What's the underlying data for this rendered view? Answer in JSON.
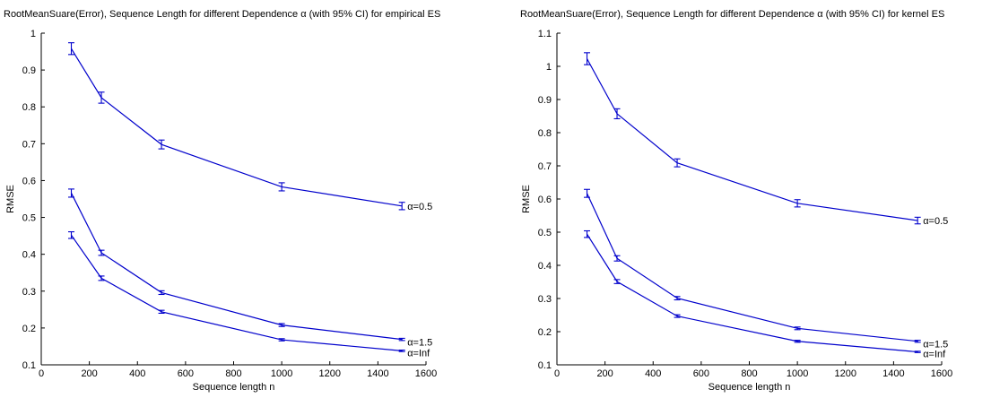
{
  "chart_data": [
    {
      "type": "line",
      "title": "RootMeanSuare(Error), Sequence Length for different Dependence α (with 95% CI) for empirical ES",
      "xlabel": "Sequence length n",
      "ylabel": "RMSE",
      "xlim": [
        0,
        1600
      ],
      "ylim": [
        0.1,
        1.0
      ],
      "xticks": [
        0,
        200,
        400,
        600,
        800,
        1000,
        1200,
        1400,
        1600
      ],
      "xtick_labels": [
        "0",
        "200",
        "400",
        "600",
        "800",
        "1000",
        "1200",
        "1400",
        "1600"
      ],
      "yticks": [
        0.1,
        0.2,
        0.3,
        0.4,
        0.5,
        0.6,
        0.7,
        0.8,
        0.9,
        1.0
      ],
      "ytick_labels": [
        "0.1",
        "0.2",
        "0.3",
        "0.4",
        "0.5",
        "0.6",
        "0.7",
        "0.8",
        "0.9",
        "1"
      ],
      "grid": false,
      "color": "#0000cc",
      "x": [
        125,
        250,
        500,
        1000,
        1500
      ],
      "series": [
        {
          "name": "α=0.5",
          "values": [
            0.958,
            0.825,
            0.698,
            0.583,
            0.531
          ],
          "ci": [
            0.016,
            0.015,
            0.012,
            0.011,
            0.01
          ]
        },
        {
          "name": "α=1.5",
          "values": [
            0.566,
            0.404,
            0.296,
            0.208,
            0.169
          ],
          "ci": [
            0.011,
            0.007,
            0.005,
            0.004,
            0.003
          ]
        },
        {
          "name": "α=Inf",
          "values": [
            0.452,
            0.335,
            0.244,
            0.168,
            0.138
          ],
          "ci": [
            0.009,
            0.006,
            0.004,
            0.003,
            0.002
          ]
        }
      ]
    },
    {
      "type": "line",
      "title": "RootMeanSuare(Error), Sequence Length for different Dependence α (with 95% CI) for kernel ES",
      "xlabel": "Sequence length n",
      "ylabel": "RMSE",
      "xlim": [
        0,
        1600
      ],
      "ylim": [
        0.1,
        1.1
      ],
      "xticks": [
        0,
        200,
        400,
        600,
        800,
        1000,
        1200,
        1400,
        1600
      ],
      "xtick_labels": [
        "0",
        "200",
        "400",
        "600",
        "800",
        "1000",
        "1200",
        "1400",
        "1600"
      ],
      "yticks": [
        0.1,
        0.2,
        0.3,
        0.4,
        0.5,
        0.6,
        0.7,
        0.8,
        0.9,
        1.0,
        1.1
      ],
      "ytick_labels": [
        "0.1",
        "0.2",
        "0.3",
        "0.4",
        "0.5",
        "0.6",
        "0.7",
        "0.8",
        "0.9",
        "1",
        "1.1"
      ],
      "grid": false,
      "color": "#0000cc",
      "x": [
        125,
        250,
        500,
        1000,
        1500
      ],
      "series": [
        {
          "name": "α=0.5",
          "values": [
            1.023,
            0.857,
            0.709,
            0.587,
            0.535
          ],
          "ci": [
            0.018,
            0.015,
            0.012,
            0.011,
            0.01
          ]
        },
        {
          "name": "α=1.5",
          "values": [
            0.617,
            0.421,
            0.301,
            0.21,
            0.171
          ],
          "ci": [
            0.012,
            0.008,
            0.005,
            0.004,
            0.003
          ]
        },
        {
          "name": "α=Inf",
          "values": [
            0.494,
            0.351,
            0.247,
            0.171,
            0.139
          ],
          "ci": [
            0.01,
            0.006,
            0.004,
            0.003,
            0.002
          ]
        }
      ]
    }
  ]
}
